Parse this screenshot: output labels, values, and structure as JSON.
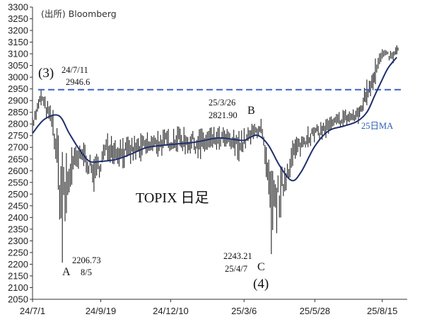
{
  "source_text": "(出所) Bloomberg",
  "chart_data": {
    "type": "ohlc",
    "title": "TOPIX 日足",
    "ylim": [
      2050,
      3300
    ],
    "y_ticks": [
      2050,
      2100,
      2150,
      2200,
      2250,
      2300,
      2350,
      2400,
      2450,
      2500,
      2550,
      2600,
      2650,
      2700,
      2750,
      2800,
      2850,
      2900,
      2950,
      3000,
      3050,
      3100,
      3150,
      3200,
      3250,
      3300
    ],
    "x_tick_labels": [
      "24/7/1",
      "24/9/19",
      "24/12/10",
      "25/3/6",
      "25/5/28",
      "25/8/15"
    ],
    "series": [
      {
        "name": "25日MA",
        "style": "line",
        "color": "#1f2f6e",
        "points": [
          {
            "date": "2024-07-01",
            "value": 2760
          },
          {
            "date": "2024-07-15",
            "value": 2820
          },
          {
            "date": "2024-08-01",
            "value": 2835
          },
          {
            "date": "2024-08-13",
            "value": 2760
          },
          {
            "date": "2024-08-26",
            "value": 2685
          },
          {
            "date": "2024-09-06",
            "value": 2640
          },
          {
            "date": "2024-09-19",
            "value": 2640
          },
          {
            "date": "2024-10-07",
            "value": 2648
          },
          {
            "date": "2024-10-25",
            "value": 2672
          },
          {
            "date": "2024-11-13",
            "value": 2700
          },
          {
            "date": "2024-12-10",
            "value": 2712
          },
          {
            "date": "2025-01-07",
            "value": 2722
          },
          {
            "date": "2025-02-03",
            "value": 2740
          },
          {
            "date": "2025-02-20",
            "value": 2735
          },
          {
            "date": "2025-03-06",
            "value": 2730
          },
          {
            "date": "2025-03-21",
            "value": 2752
          },
          {
            "date": "2025-04-03",
            "value": 2712
          },
          {
            "date": "2025-04-17",
            "value": 2620
          },
          {
            "date": "2025-05-01",
            "value": 2558
          },
          {
            "date": "2025-05-12",
            "value": 2595
          },
          {
            "date": "2025-05-28",
            "value": 2705
          },
          {
            "date": "2025-06-13",
            "value": 2770
          },
          {
            "date": "2025-06-30",
            "value": 2790
          },
          {
            "date": "2025-07-16",
            "value": 2810
          },
          {
            "date": "2025-07-28",
            "value": 2850
          },
          {
            "date": "2025-08-06",
            "value": 2920
          },
          {
            "date": "2025-08-15",
            "value": 2990
          },
          {
            "date": "2025-08-22",
            "value": 3040
          },
          {
            "date": "2025-09-01",
            "value": 3085
          }
        ]
      }
    ],
    "ohlc_envelope": [
      {
        "date": "2024-07-01",
        "low": 2760,
        "high": 2830
      },
      {
        "date": "2024-07-11",
        "low": 2880,
        "high": 2946.6
      },
      {
        "date": "2024-07-25",
        "low": 2750,
        "high": 2860
      },
      {
        "date": "2024-08-05",
        "low": 2206.73,
        "high": 2680
      },
      {
        "date": "2024-08-16",
        "low": 2540,
        "high": 2700
      },
      {
        "date": "2024-08-30",
        "low": 2620,
        "high": 2720
      },
      {
        "date": "2024-09-11",
        "low": 2510,
        "high": 2650
      },
      {
        "date": "2024-09-27",
        "low": 2640,
        "high": 2760
      },
      {
        "date": "2024-10-15",
        "low": 2610,
        "high": 2740
      },
      {
        "date": "2024-11-05",
        "low": 2640,
        "high": 2760
      },
      {
        "date": "2024-11-25",
        "low": 2660,
        "high": 2770
      },
      {
        "date": "2024-12-18",
        "low": 2680,
        "high": 2790
      },
      {
        "date": "2025-01-14",
        "low": 2650,
        "high": 2780
      },
      {
        "date": "2025-02-05",
        "low": 2690,
        "high": 2790
      },
      {
        "date": "2025-02-28",
        "low": 2640,
        "high": 2770
      },
      {
        "date": "2025-03-26",
        "low": 2760,
        "high": 2821.9
      },
      {
        "date": "2025-04-07",
        "low": 2243.21,
        "high": 2600
      },
      {
        "date": "2025-04-18",
        "low": 2400,
        "high": 2620
      },
      {
        "date": "2025-05-02",
        "low": 2620,
        "high": 2730
      },
      {
        "date": "2025-05-20",
        "low": 2700,
        "high": 2790
      },
      {
        "date": "2025-06-10",
        "low": 2740,
        "high": 2820
      },
      {
        "date": "2025-06-30",
        "low": 2790,
        "high": 2860
      },
      {
        "date": "2025-07-18",
        "low": 2800,
        "high": 2870
      },
      {
        "date": "2025-07-28",
        "low": 2880,
        "high": 2990
      },
      {
        "date": "2025-08-07",
        "low": 2970,
        "high": 3080
      },
      {
        "date": "2025-08-15",
        "low": 3080,
        "high": 3120
      },
      {
        "date": "2025-08-28",
        "low": 3060,
        "high": 3110
      },
      {
        "date": "2025-09-04",
        "low": 3110,
        "high": 3160
      }
    ],
    "reference_line": {
      "value": 2946.6,
      "style": "dashed",
      "color": "#3a62c4"
    },
    "annotations": {
      "wave_label_3": "(3)",
      "wave_label_4": "(4)",
      "point_A": "A",
      "point_B": "B",
      "point_C": "C",
      "peak1_date": "24/7/11",
      "peak1_value": "2946.6",
      "peak2_date": "25/3/26",
      "peak2_value": "2821.90",
      "low_A_value": "2206.73",
      "low_A_date": "8/5",
      "low_C_value": "2243.21",
      "low_C_date": "25/4/7",
      "ma_label": "25日MA"
    },
    "grid": false,
    "legend": "none"
  }
}
